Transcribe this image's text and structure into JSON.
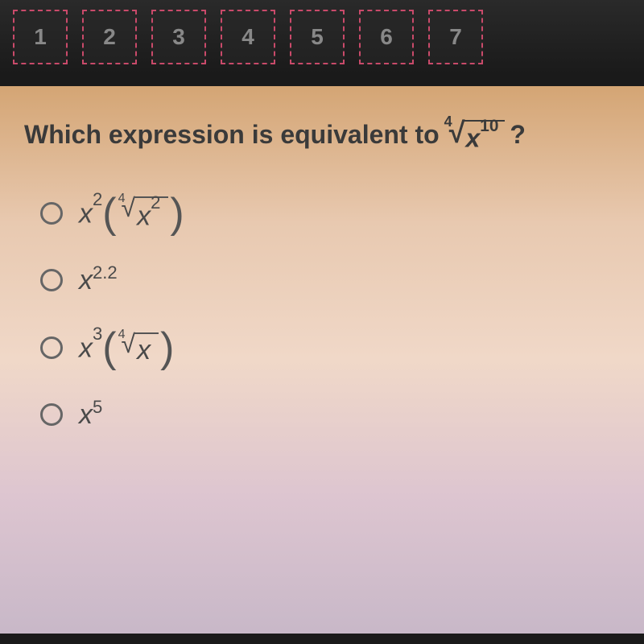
{
  "nav": {
    "items": [
      "1",
      "2",
      "3",
      "4",
      "5",
      "6",
      "7"
    ]
  },
  "question": {
    "prefix": "Which expression is equivalent to",
    "radical_index": "4",
    "radical_base": "x",
    "radical_exp": "10",
    "suffix": "?"
  },
  "options": {
    "a": {
      "coef_base": "x",
      "coef_exp": "2",
      "rad_index": "4",
      "rad_base": "x",
      "rad_exp": "2"
    },
    "b": {
      "base": "x",
      "exp": "2.2"
    },
    "c": {
      "coef_base": "x",
      "coef_exp": "3",
      "rad_index": "4",
      "rad_base": "x",
      "rad_exp": ""
    },
    "d": {
      "base": "x",
      "exp": "5"
    }
  },
  "colors": {
    "nav_border": "#c94a6a",
    "nav_text": "#888888",
    "bg_top": "#d4a574",
    "text": "#3a3a3a"
  }
}
